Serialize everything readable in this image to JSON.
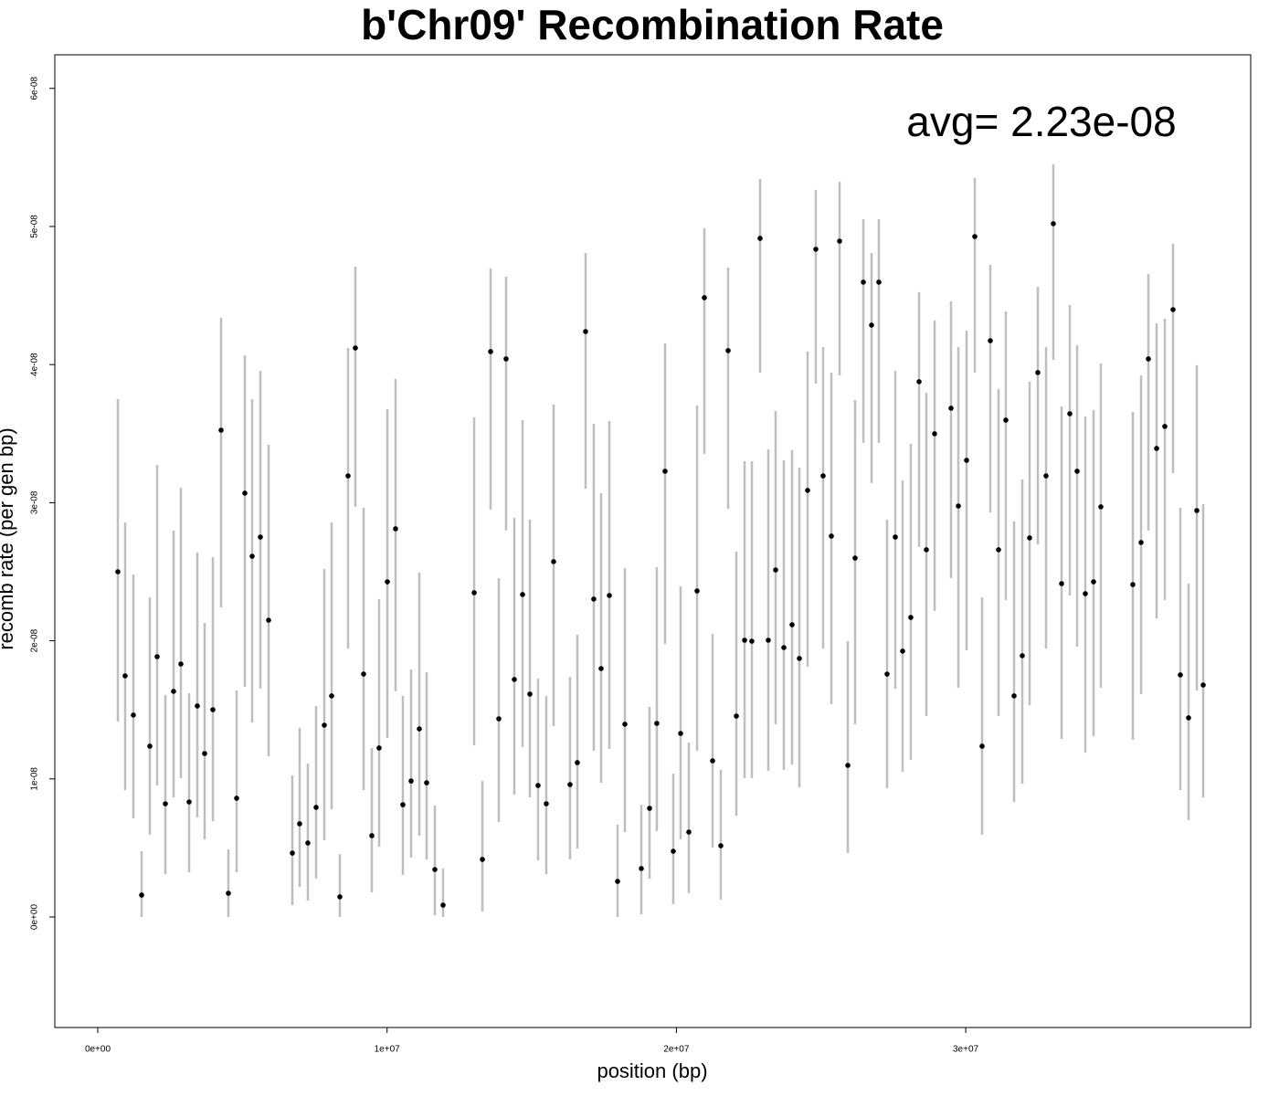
{
  "chart_data": {
    "type": "scatter",
    "title": "b'Chr09' Recombination Rate",
    "x_label": "position (bp)",
    "y_label": "recomb rate (per gen bp)",
    "annotation": "avg= 2.23e-08",
    "point_color": "#000000",
    "error_color": "#bebebe",
    "xlim": [
      -1484000,
      39850000
    ],
    "ylim": [
      -8e-09,
      6.243e-08
    ],
    "xticks": [
      {
        "value": 0,
        "label": "0e+00"
      },
      {
        "value": 10000000,
        "label": "1e+07"
      },
      {
        "value": 20000000,
        "label": "2e+07"
      },
      {
        "value": 30000000,
        "label": "3e+07"
      }
    ],
    "yticks": [
      {
        "value": 0,
        "label": "0e+00"
      },
      {
        "value": 1e-08,
        "label": "1e-08"
      },
      {
        "value": 2e-08,
        "label": "2e-08"
      },
      {
        "value": 3e-08,
        "label": "3e-08"
      },
      {
        "value": 4e-08,
        "label": "4e-08"
      },
      {
        "value": 5e-08,
        "label": "5e-08"
      },
      {
        "value": 6e-08,
        "label": "6e-08"
      }
    ],
    "x": [
      695000,
      947000,
      1231000,
      1516000,
      1800000,
      2052000,
      2337000,
      2621000,
      2873000,
      3158000,
      3442000,
      3694000,
      3979000,
      4263000,
      4515000,
      4800000,
      5084000,
      5336000,
      5621000,
      5905000,
      6726000,
      6978000,
      7262000,
      7547000,
      7831000,
      8083000,
      8368000,
      8652000,
      8904000,
      9189000,
      9473000,
      9725000,
      10010000,
      10294000,
      10546000,
      10831000,
      11115000,
      11367000,
      11651000,
      11936000,
      13011000,
      13295000,
      13579000,
      13862000,
      14114000,
      14398000,
      14683000,
      14935000,
      15219000,
      15503000,
      15756000,
      16324000,
      16577000,
      16861000,
      17145000,
      17398000,
      17683000,
      17967000,
      18219000,
      18788000,
      19072000,
      19324000,
      19609000,
      19893000,
      20146000,
      20430000,
      20715000,
      20967000,
      21251000,
      21535000,
      21788000,
      22073000,
      22357000,
      22608000,
      22893000,
      23177000,
      23430000,
      23714000,
      23998000,
      24251000,
      24535000,
      24819000,
      25072000,
      25357000,
      25641000,
      25925000,
      26177000,
      26462000,
      26746000,
      26998000,
      27282000,
      27567000,
      27819000,
      28103000,
      28388000,
      28640000,
      28925000,
      29493000,
      29746000,
      30030000,
      30314000,
      30566000,
      30851000,
      31135000,
      31387000,
      31672000,
      31956000,
      32209000,
      32493000,
      32777000,
      33029000,
      33314000,
      33598000,
      33851000,
      34135000,
      34419000,
      34671000,
      35777000,
      36061000,
      36314000,
      36598000,
      36882000,
      37167000,
      37419000,
      37703000,
      37988000,
      38209000
    ],
    "values": [
      2.5e-08,
      1.746e-08,
      1.462e-08,
      1.59e-09,
      1.237e-08,
      1.885e-08,
      8.2e-09,
      1.634e-08,
      1.832e-08,
      8.33e-09,
      1.528e-08,
      1.184e-08,
      1.501e-08,
      3.525e-08,
      1.72e-09,
      8.6e-09,
      3.069e-08,
      2.612e-08,
      2.751e-08,
      2.149e-08,
      4.63e-09,
      6.75e-09,
      5.36e-09,
      7.94e-09,
      1.389e-08,
      1.601e-08,
      1.46e-09,
      3.194e-08,
      4.12e-08,
      1.759e-08,
      5.89e-09,
      1.224e-08,
      2.427e-08,
      2.811e-08,
      8.13e-09,
      9.85e-09,
      1.362e-08,
      9.72e-09,
      3.44e-09,
      8.6e-10,
      2.348e-08,
      4.17e-09,
      4.094e-08,
      1.435e-08,
      4.041e-08,
      1.72e-08,
      2.335e-08,
      1.614e-08,
      9.52e-09,
      8.2e-09,
      2.573e-08,
      9.59e-09,
      1.118e-08,
      4.239e-08,
      2.302e-08,
      1.799e-08,
      2.328e-08,
      2.58e-09,
      1.396e-08,
      3.51e-09,
      7.87e-09,
      1.402e-08,
      3.228e-08,
      4.76e-09,
      1.329e-08,
      6.15e-09,
      2.361e-08,
      4.484e-08,
      1.131e-08,
      5.16e-09,
      4.101e-08,
      1.455e-08,
      2.004e-08,
      1.997e-08,
      4.914e-08,
      2.004e-08,
      2.513e-08,
      1.951e-08,
      2.116e-08,
      1.872e-08,
      3.089e-08,
      4.835e-08,
      3.194e-08,
      2.758e-08,
      4.894e-08,
      1.098e-08,
      2.599e-08,
      4.597e-08,
      4.286e-08,
      4.597e-08,
      1.759e-08,
      2.751e-08,
      1.925e-08,
      2.169e-08,
      3.876e-08,
      2.659e-08,
      3.499e-08,
      3.684e-08,
      2.976e-08,
      3.307e-08,
      4.927e-08,
      1.237e-08,
      4.173e-08,
      2.659e-08,
      3.598e-08,
      1.601e-08,
      1.892e-08,
      2.745e-08,
      3.942e-08,
      3.194e-08,
      5.02e-08,
      2.414e-08,
      3.644e-08,
      3.228e-08,
      2.341e-08,
      2.427e-08,
      2.97e-08,
      2.407e-08,
      2.712e-08,
      4.041e-08,
      3.393e-08,
      3.552e-08,
      4.398e-08,
      1.753e-08,
      1.442e-08,
      2.943e-08,
      1.68e-08
    ],
    "lower": [
      1.415e-08,
      9.19e-09,
      7.14e-09,
      0,
      5.95e-09,
      9.52e-09,
      3.11e-09,
      8.66e-09,
      1.005e-08,
      3.24e-09,
      7.21e-09,
      5.62e-09,
      6.94e-09,
      2.242e-08,
      0,
      3.24e-09,
      1.667e-08,
      1.409e-08,
      1.653e-08,
      1.164e-08,
      8.6e-10,
      2.18e-09,
      1.19e-09,
      2.78e-09,
      5.56e-09,
      7.8e-09,
      0,
      1.944e-08,
      2.97e-08,
      9.19e-09,
      1.79e-09,
      5.09e-09,
      1.296e-08,
      1.634e-08,
      3.04e-09,
      4.3e-09,
      5.89e-09,
      4.17e-09,
      1.3e-10,
      0,
      1.243e-08,
      4e-10,
      2.95e-08,
      6.88e-09,
      2.798e-08,
      8.86e-09,
      1.23e-08,
      8.66e-09,
      4.1e-09,
      3.11e-09,
      1.382e-08,
      4.17e-09,
      4.96e-09,
      3.102e-08,
      1.204e-08,
      9.72e-09,
      1.217e-08,
      0,
      6.15e-09,
      2e-10,
      2.78e-09,
      6.22e-09,
      1.978e-08,
      9.3e-10,
      5.62e-09,
      1.72e-09,
      1.204e-08,
      3.353e-08,
      5.03e-09,
      1.26e-09,
      2.956e-08,
      7.34e-09,
      1.005e-08,
      1.005e-08,
      3.942e-08,
      1.058e-08,
      1.396e-08,
      1.065e-08,
      1.104e-08,
      9.39e-09,
      1.812e-08,
      3.862e-08,
      1.944e-08,
      1.541e-08,
      3.922e-08,
      4.63e-09,
      1.396e-08,
      3.433e-08,
      3.142e-08,
      3.433e-08,
      9.33e-09,
      1.653e-08,
      1.052e-08,
      1.138e-08,
      2.679e-08,
      1.455e-08,
      2.216e-08,
      2.454e-08,
      1.66e-08,
      1.931e-08,
      3.942e-08,
      5.95e-09,
      2.93e-08,
      1.455e-08,
      2.295e-08,
      8.33e-09,
      9.66e-09,
      1.534e-08,
      2.698e-08,
      1.944e-08,
      4.034e-08,
      1.29e-08,
      2.328e-08,
      1.958e-08,
      1.19e-08,
      1.31e-08,
      1.66e-08,
      1.283e-08,
      1.614e-08,
      2.798e-08,
      2.163e-08,
      2.295e-08,
      3.214e-08,
      9.19e-09,
      7.01e-09,
      1.64e-08,
      8.66e-09
    ],
    "upper": [
      3.75e-08,
      2.857e-08,
      2.48e-08,
      4.76e-09,
      2.315e-08,
      3.274e-08,
      1.607e-08,
      2.798e-08,
      3.108e-08,
      1.62e-08,
      2.639e-08,
      2.13e-08,
      2.606e-08,
      4.339e-08,
      4.89e-09,
      1.64e-08,
      4.067e-08,
      3.75e-08,
      3.955e-08,
      3.419e-08,
      1.025e-08,
      1.369e-08,
      1.111e-08,
      1.528e-08,
      2.52e-08,
      2.857e-08,
      4.56e-09,
      4.12e-08,
      4.709e-08,
      2.963e-08,
      1.224e-08,
      2.302e-08,
      3.677e-08,
      3.896e-08,
      1.601e-08,
      1.792e-08,
      2.493e-08,
      1.772e-08,
      8.07e-09,
      3.51e-09,
      3.618e-08,
      9.85e-09,
      4.696e-08,
      2.454e-08,
      4.636e-08,
      2.89e-08,
      3.598e-08,
      2.877e-08,
      1.726e-08,
      1.601e-08,
      3.71e-08,
      1.739e-08,
      2.044e-08,
      4.808e-08,
      3.571e-08,
      3.069e-08,
      3.591e-08,
      6.68e-09,
      2.526e-08,
      8.13e-09,
      1.521e-08,
      2.533e-08,
      4.153e-08,
      1.038e-08,
      2.394e-08,
      1.263e-08,
      3.704e-08,
      4.987e-08,
      2.05e-08,
      1.065e-08,
      4.702e-08,
      2.646e-08,
      3.3e-08,
      3.3e-08,
      5.344e-08,
      3.386e-08,
      3.664e-08,
      3.307e-08,
      3.38e-08,
      3.254e-08,
      4.094e-08,
      5.265e-08,
      4.127e-08,
      3.942e-08,
      5.324e-08,
      1.997e-08,
      3.743e-08,
      5.053e-08,
      4.808e-08,
      5.053e-08,
      2.877e-08,
      3.955e-08,
      3.161e-08,
      3.426e-08,
      4.524e-08,
      3.796e-08,
      4.319e-08,
      4.458e-08,
      4.127e-08,
      4.246e-08,
      5.351e-08,
      2.315e-08,
      4.722e-08,
      3.823e-08,
      4.385e-08,
      2.864e-08,
      3.168e-08,
      3.876e-08,
      4.563e-08,
      4.127e-08,
      5.45e-08,
      3.697e-08,
      4.431e-08,
      4.14e-08,
      3.624e-08,
      3.671e-08,
      4.008e-08,
      3.657e-08,
      3.922e-08,
      4.656e-08,
      4.299e-08,
      4.332e-08,
      4.874e-08,
      2.963e-08,
      2.414e-08,
      3.995e-08,
      2.989e-08
    ]
  }
}
